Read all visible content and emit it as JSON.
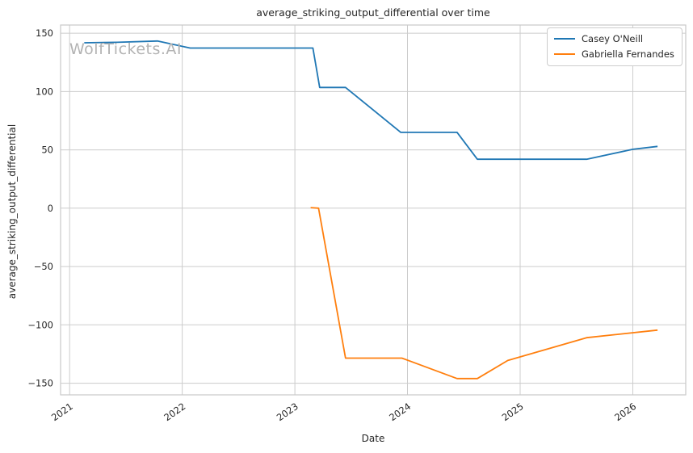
{
  "chart_data": {
    "type": "line",
    "title": "average_striking_output_differential over time",
    "xlabel": "Date",
    "ylabel": "average_striking_output_differential",
    "watermark": "WolfTickets.AI",
    "grid": true,
    "legend_position": "upper right",
    "x_ticks": [
      2021,
      2022,
      2023,
      2024,
      2025,
      2026
    ],
    "y_ticks": [
      150,
      100,
      50,
      0,
      -50,
      -100,
      -150
    ],
    "xlim": [
      2020.92,
      2026.47
    ],
    "ylim": [
      -160,
      157
    ],
    "series": [
      {
        "name": "Casey O'Neill",
        "color": "#1f77b4",
        "points": [
          [
            2021.13,
            141.8
          ],
          [
            2021.42,
            142.2
          ],
          [
            2021.78,
            143.3
          ],
          [
            2022.07,
            137.3
          ],
          [
            2023.16,
            137.3
          ],
          [
            2023.22,
            103.5
          ],
          [
            2023.45,
            103.5
          ],
          [
            2023.94,
            65.0
          ],
          [
            2024.44,
            65.0
          ],
          [
            2024.62,
            42.0
          ],
          [
            2025.59,
            42.0
          ],
          [
            2026.0,
            50.5
          ],
          [
            2026.22,
            53.0
          ]
        ]
      },
      {
        "name": "Gabriella Fernandes",
        "color": "#ff7f0e",
        "points": [
          [
            2023.14,
            0.5
          ],
          [
            2023.21,
            0.0
          ],
          [
            2023.45,
            -128.5
          ],
          [
            2023.95,
            -128.5
          ],
          [
            2024.44,
            -146.0
          ],
          [
            2024.62,
            -146.0
          ],
          [
            2024.89,
            -130.5
          ],
          [
            2025.59,
            -111.0
          ],
          [
            2026.22,
            -104.5
          ]
        ]
      }
    ]
  },
  "colors": {
    "background": "#ffffff",
    "grid": "#cccccc",
    "spine": "#c9c9c9",
    "text": "#262626",
    "watermark": "#b3b3b3",
    "series_blue": "#1f77b4",
    "series_orange": "#ff7f0e"
  }
}
